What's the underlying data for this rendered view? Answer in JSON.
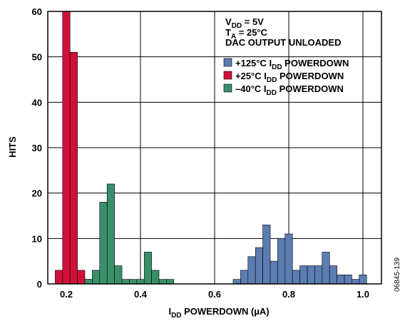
{
  "chart_data": {
    "type": "bar",
    "xlabel": {
      "main": "I",
      "sub": "DD",
      "rest": " POWERDOWN (µA)"
    },
    "ylabel": "HITS",
    "xlim": [
      0.15,
      1.05
    ],
    "ylim": [
      0,
      60
    ],
    "xticks": [
      "0.2",
      "0.4",
      "0.6",
      "0.8",
      "1.0"
    ],
    "xtick_values": [
      0.2,
      0.4,
      0.6,
      0.8,
      1.0
    ],
    "yticks": [
      "0",
      "10",
      "20",
      "30",
      "40",
      "50",
      "60"
    ],
    "ytick_values": [
      0,
      10,
      20,
      30,
      40,
      50,
      60
    ],
    "grid": true,
    "bin_width": 0.02,
    "annotations": {
      "vdd": {
        "main": "V",
        "sub": "DD",
        "rest": " = 5V"
      },
      "ta": {
        "main": "T",
        "sub": "A",
        "rest": " = 25°C"
      },
      "dac": "DAC OUTPUT UNLOADED"
    },
    "legend_position": "top-right",
    "figure_id": "06845-139",
    "series": [
      {
        "name": {
          "prefix": "+125°C  I",
          "sub": "DD",
          "suffix": " POWERDOWN"
        },
        "color": "#5b7db1",
        "bins": [
          {
            "x": 0.66,
            "y": 1
          },
          {
            "x": 0.68,
            "y": 3
          },
          {
            "x": 0.7,
            "y": 6
          },
          {
            "x": 0.72,
            "y": 8
          },
          {
            "x": 0.74,
            "y": 11
          },
          {
            "x": 0.76,
            "y": 5
          },
          {
            "x": 0.78,
            "y": 8
          },
          {
            "x": 0.8,
            "y": 6
          },
          {
            "x": 0.82,
            "y": 3
          },
          {
            "x": 0.84,
            "y": 4
          },
          {
            "x": 0.86,
            "y": 3
          },
          {
            "x": 0.88,
            "y": 2
          },
          {
            "x": 0.9,
            "y": 7
          },
          {
            "x": 0.92,
            "y": 4
          },
          {
            "x": 0.94,
            "y": 2
          },
          {
            "x": 0.96,
            "y": 2
          },
          {
            "x": 0.98,
            "y": 1
          },
          {
            "x": 1.0,
            "y": 2
          },
          {
            "x": 0.74,
            "y": 13
          },
          {
            "x": 0.8,
            "y": 11
          },
          {
            "x": 0.78,
            "y": 10
          },
          {
            "x": 0.88,
            "y": 4
          },
          {
            "x": 0.86,
            "y": 4
          }
        ]
      },
      {
        "name": {
          "prefix": "+25°C  I",
          "sub": "DD",
          "suffix": " POWERDOWN"
        },
        "color": "#d0103a",
        "bins": [
          {
            "x": 0.18,
            "y": 3
          },
          {
            "x": 0.2,
            "y": 60
          },
          {
            "x": 0.22,
            "y": 51
          },
          {
            "x": 0.24,
            "y": 3
          },
          {
            "x": 0.26,
            "y": 1
          }
        ]
      },
      {
        "name": {
          "prefix": "–40°C  I",
          "sub": "DD",
          "suffix": " POWERDOWN"
        },
        "color": "#3a8f6b",
        "bins": [
          {
            "x": 0.26,
            "y": 1
          },
          {
            "x": 0.28,
            "y": 3
          },
          {
            "x": 0.3,
            "y": 18
          },
          {
            "x": 0.32,
            "y": 22
          },
          {
            "x": 0.34,
            "y": 4
          },
          {
            "x": 0.36,
            "y": 1
          },
          {
            "x": 0.38,
            "y": 1
          },
          {
            "x": 0.4,
            "y": 1
          },
          {
            "x": 0.42,
            "y": 7
          },
          {
            "x": 0.44,
            "y": 3
          },
          {
            "x": 0.46,
            "y": 1
          },
          {
            "x": 0.48,
            "y": 1
          }
        ]
      }
    ]
  }
}
